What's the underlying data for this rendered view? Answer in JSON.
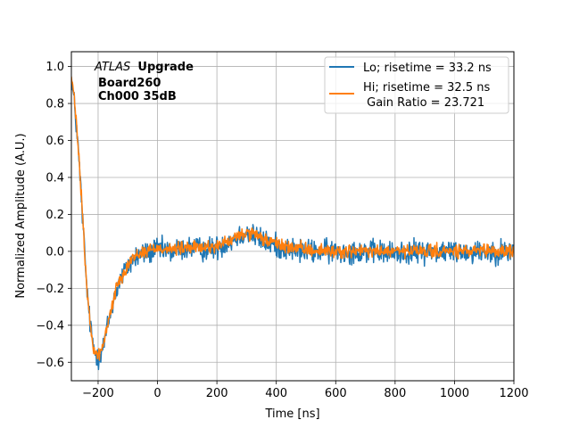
{
  "chart_data": {
    "type": "line",
    "xlabel": "Time [ns]",
    "ylabel": "Normalized Amplitude (A.U.)",
    "xlim": [
      -290,
      1200
    ],
    "ylim": [
      -0.7,
      1.08
    ],
    "xticks": [
      -200,
      0,
      200,
      400,
      600,
      800,
      1000,
      1200
    ],
    "xtick_labels": [
      "−200",
      "0",
      "200",
      "400",
      "600",
      "800",
      "1000",
      "1200"
    ],
    "yticks": [
      -0.6,
      -0.4,
      -0.2,
      0.0,
      0.2,
      0.4,
      0.6,
      0.8,
      1.0
    ],
    "ytick_labels": [
      "−0.6",
      "−0.4",
      "−0.2",
      "0.0",
      "0.2",
      "0.4",
      "0.6",
      "0.8",
      "1.0"
    ],
    "grid": true,
    "legend_position": "top-right",
    "annotation": {
      "atlas": "ATLAS",
      "upgrade": "Upgrade",
      "board": "Board260",
      "channel": "Ch000 35dB"
    },
    "series": [
      {
        "name": "Lo; risetime = 33.2 ns",
        "color": "#1f77b4",
        "noise": 0.045,
        "x": [
          -290,
          -280,
          -270,
          -260,
          -250,
          -240,
          -230,
          -220,
          -210,
          -200,
          -190,
          -180,
          -170,
          -160,
          -150,
          -140,
          -130,
          -120,
          -110,
          -100,
          -90,
          -80,
          -60,
          -40,
          -20,
          0,
          50,
          100,
          150,
          200,
          250,
          280,
          300,
          320,
          350,
          400,
          450,
          500,
          600,
          700,
          800,
          900,
          1000,
          1100,
          1200
        ],
        "y": [
          0.93,
          0.8,
          0.62,
          0.38,
          0.12,
          -0.15,
          -0.35,
          -0.48,
          -0.55,
          -0.57,
          -0.55,
          -0.5,
          -0.42,
          -0.35,
          -0.28,
          -0.22,
          -0.17,
          -0.14,
          -0.11,
          -0.08,
          -0.06,
          -0.04,
          -0.02,
          -0.01,
          0.0,
          0.01,
          0.0,
          0.02,
          0.01,
          0.02,
          0.06,
          0.09,
          0.1,
          0.09,
          0.06,
          0.03,
          0.01,
          0.0,
          0.0,
          0.0,
          -0.01,
          0.0,
          0.0,
          0.0,
          0.0
        ]
      },
      {
        "name": "Hi; risetime = 32.5 ns",
        "color": "#ff7f0e",
        "noise": 0.025,
        "x": [
          -290,
          -280,
          -270,
          -260,
          -250,
          -240,
          -230,
          -220,
          -210,
          -200,
          -190,
          -180,
          -170,
          -160,
          -150,
          -140,
          -130,
          -120,
          -110,
          -100,
          -90,
          -80,
          -60,
          -40,
          -20,
          0,
          50,
          100,
          150,
          200,
          250,
          280,
          300,
          320,
          350,
          400,
          450,
          500,
          600,
          700,
          800,
          900,
          1000,
          1100,
          1200
        ],
        "y": [
          0.95,
          0.82,
          0.63,
          0.39,
          0.13,
          -0.15,
          -0.35,
          -0.48,
          -0.55,
          -0.56,
          -0.54,
          -0.49,
          -0.41,
          -0.34,
          -0.27,
          -0.21,
          -0.16,
          -0.13,
          -0.1,
          -0.07,
          -0.05,
          -0.03,
          -0.01,
          0.0,
          0.01,
          0.02,
          0.01,
          0.02,
          0.02,
          0.03,
          0.06,
          0.09,
          0.1,
          0.09,
          0.07,
          0.04,
          0.02,
          0.01,
          0.0,
          0.0,
          0.0,
          0.0,
          0.0,
          0.0,
          0.0
        ]
      }
    ],
    "legend_extra": " Gain Ratio = 23.721"
  }
}
